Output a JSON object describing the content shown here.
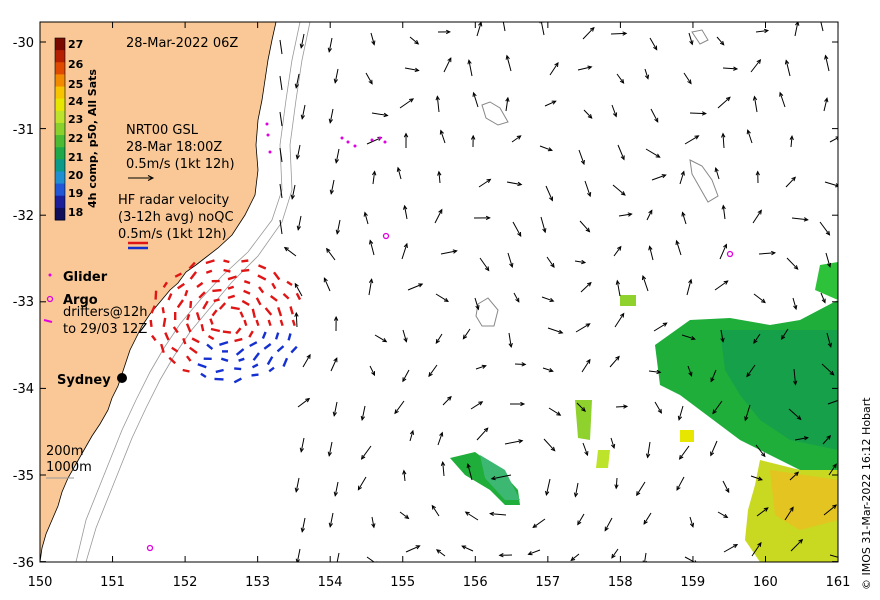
{
  "title": "28-Mar-2022 06Z",
  "colorbar": {
    "label": "4h comp, p50, All Sats",
    "ticks": [
      "27",
      "26",
      "25",
      "24",
      "23",
      "22",
      "21",
      "20",
      "19",
      "18"
    ],
    "colors": [
      "#7a0a00",
      "#b52000",
      "#e04a00",
      "#f28a00",
      "#f6c400",
      "#e6e600",
      "#bde32a",
      "#8bd12d",
      "#4cba33",
      "#1fa84a",
      "#0a9a8a",
      "#1f8fd2",
      "#2156d6",
      "#1b1f9a",
      "#0f0f5a"
    ]
  },
  "legend": {
    "glider_source": "NRT00 GSL",
    "glider_time": "28-Mar 18:00Z",
    "glider_scale": "0.5m/s (1kt 12h)",
    "hf_line1": "HF radar velocity",
    "hf_line2": "(3-12h avg) noQC",
    "hf_scale": "0.5m/s (1kt 12h)",
    "glider_label": "Glider",
    "argo_label": "Argo",
    "drifter_line1": "drifters@12h",
    "drifter_line2": "to 29/03 12Z",
    "city": "Sydney",
    "isobath_200": "200m",
    "isobath_1000": "1000m"
  },
  "credit": "© IMOS 31-Mar-2022 16:12 Hobart",
  "axes": {
    "x_ticks": [
      "150",
      "151",
      "152",
      "153",
      "154",
      "155",
      "156",
      "157",
      "158",
      "159",
      "160",
      "161"
    ],
    "y_ticks": [
      "-30",
      "-31",
      "-32",
      "-33",
      "-34",
      "-35",
      "-36"
    ]
  },
  "colors": {
    "land": "#f9c896",
    "hf_red": "#e01515",
    "hf_blue": "#1530d0",
    "marker": "#e000e0"
  }
}
